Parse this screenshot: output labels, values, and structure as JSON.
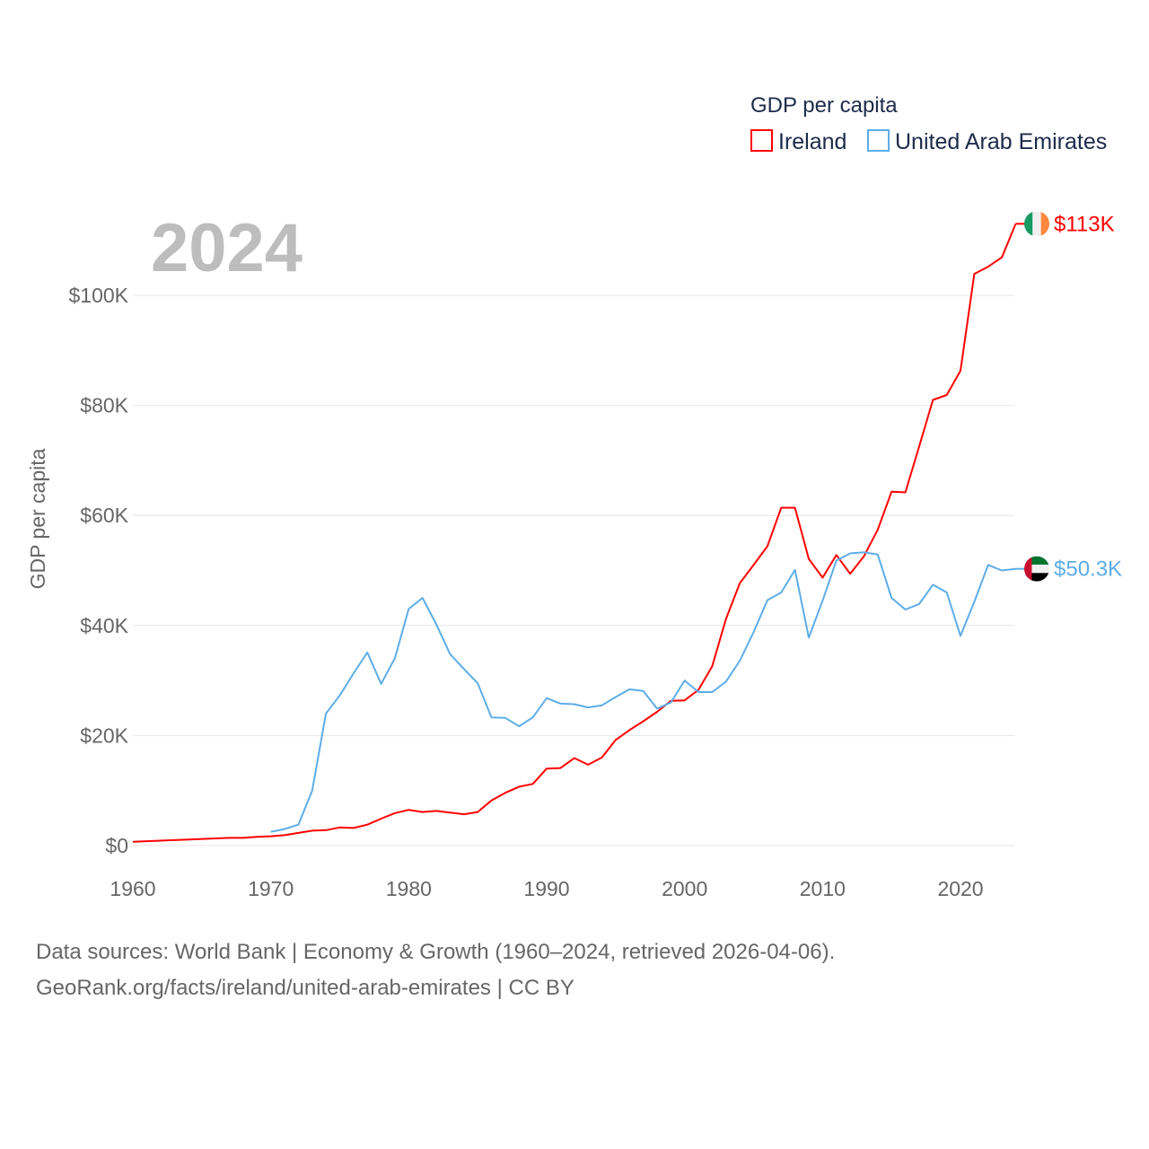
{
  "chart_data": {
    "type": "line",
    "title": "GDP per capita",
    "year_label": "2024",
    "xlabel": "",
    "ylabel": "GDP per capita",
    "xlim": [
      1960,
      2024
    ],
    "ylim": [
      0,
      100000
    ],
    "x_ticks": [
      1960,
      1970,
      1980,
      1990,
      2000,
      2010,
      2020
    ],
    "x_tick_labels": [
      "1960",
      "1970",
      "1980",
      "1990",
      "2000",
      "2010",
      "2020"
    ],
    "y_ticks": [
      0,
      20000,
      40000,
      60000,
      80000,
      100000
    ],
    "y_tick_labels": [
      "$0",
      "$20K",
      "$40K",
      "$60K",
      "$80K",
      "$100K"
    ],
    "grid": true,
    "legend_placement": "top-right",
    "series": [
      {
        "name": "Ireland",
        "color": "#ff0000",
        "end_label": "$113K",
        "start_year": 1960,
        "values": [
          0.7,
          0.8,
          0.9,
          1.0,
          1.1,
          1.2,
          1.3,
          1.4,
          1.4,
          1.6,
          1.7,
          1.9,
          2.3,
          2.7,
          2.8,
          3.3,
          3.2,
          3.8,
          4.9,
          5.9,
          6.5,
          6.1,
          6.3,
          6.0,
          5.7,
          6.1,
          8.2,
          9.6,
          10.7,
          11.2,
          14.0,
          14.1,
          15.9,
          14.7,
          16.0,
          19.2,
          21.0,
          22.6,
          24.3,
          26.3,
          26.4,
          28.3,
          32.6,
          41.2,
          47.7,
          51.0,
          54.4,
          61.4,
          61.4,
          52.1,
          48.7,
          52.8,
          49.4,
          52.6,
          57.4,
          64.3,
          64.2,
          72.5,
          81.0,
          81.9,
          86.3,
          103.9,
          105.2,
          106.9,
          113.0
        ]
      },
      {
        "name": "United Arab Emirates",
        "color": "#5dade8",
        "end_label": "$50.3K",
        "start_year": 1970,
        "values": [
          2.5,
          3.0,
          3.8,
          10.0,
          24.0,
          27.3,
          31.3,
          35.1,
          29.4,
          34.1,
          43.0,
          45.0,
          40.2,
          34.8,
          32.1,
          29.5,
          23.3,
          23.2,
          21.7,
          23.3,
          26.8,
          25.8,
          25.7,
          25.1,
          25.5,
          27.0,
          28.4,
          28.1,
          24.9,
          26.0,
          30.0,
          27.9,
          27.9,
          29.8,
          33.6,
          38.8,
          44.6,
          46.0,
          50.1,
          37.8,
          44.5,
          51.8,
          53.1,
          53.3,
          52.9,
          45.0,
          42.9,
          43.9,
          47.4,
          46.0,
          38.1,
          44.3,
          51.0,
          50.0,
          50.3
        ]
      }
    ],
    "value_unit": "thousand USD"
  },
  "footer": {
    "line1": "Data sources: World Bank | Economy & Growth (1960–2024, retrieved 2026-04-06).",
    "line2": "GeoRank.org/facts/ireland/united-arab-emirates | CC BY"
  }
}
